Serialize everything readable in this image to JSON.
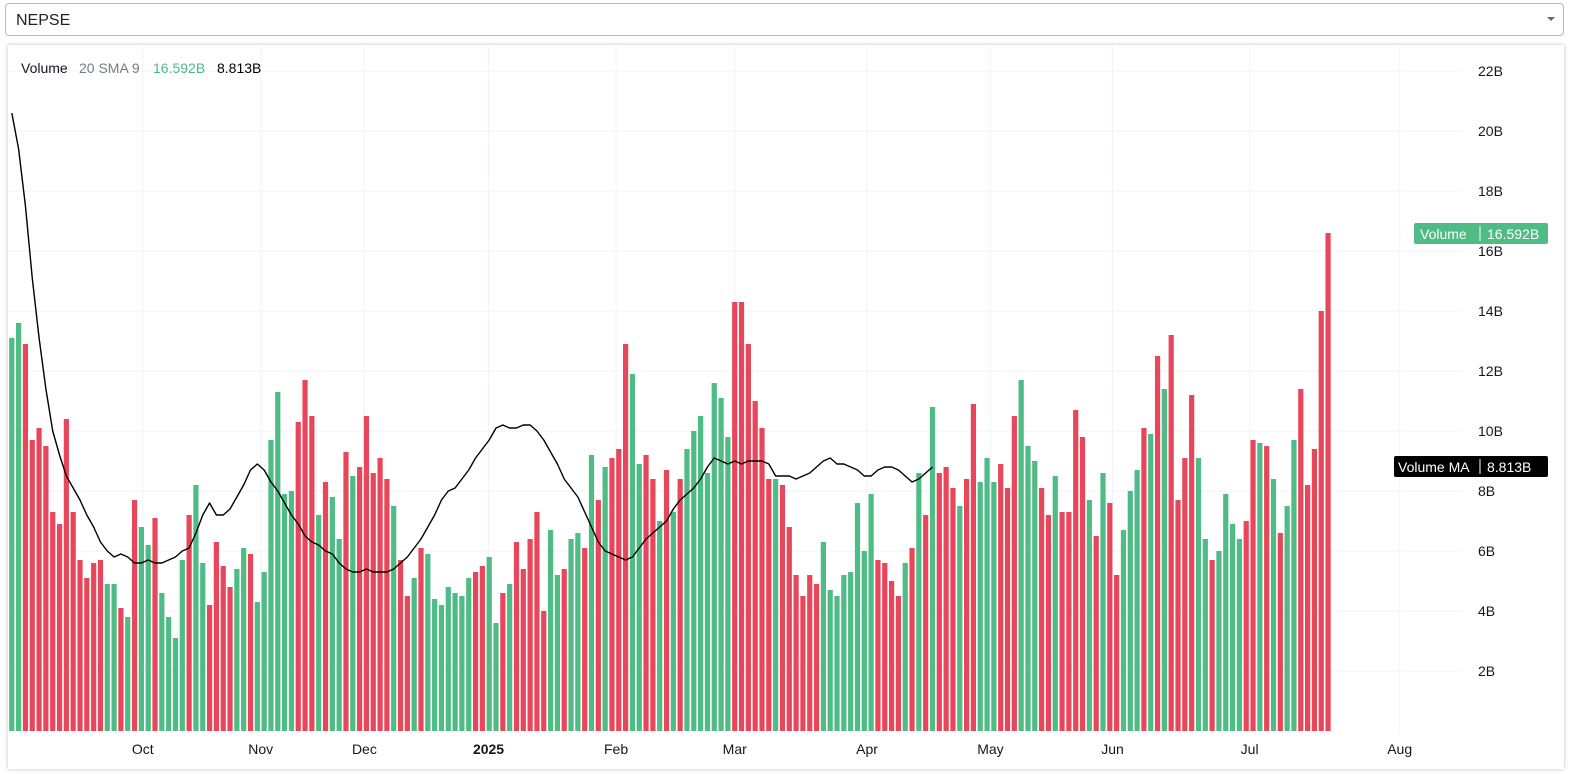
{
  "selector": {
    "value": "NEPSE"
  },
  "legend": {
    "name": "Volume",
    "params": "20 SMA 9",
    "volume_value": "16.592B",
    "ma_value": "8.813B"
  },
  "badges": {
    "volume_label": "Volume",
    "volume_value": "16.592B",
    "ma_label": "Volume MA",
    "ma_value": "8.813B"
  },
  "colors": {
    "up": "#4fbb85",
    "down": "#e8475b",
    "ma_line": "#000000",
    "grid": "#f0f3fa",
    "text": "#131722"
  },
  "chart_data": {
    "type": "bar",
    "title": "",
    "y_unit": "B",
    "ylim": [
      0,
      23.2
    ],
    "y_ticks": [
      2,
      4,
      6,
      8,
      10,
      12,
      14,
      16,
      18,
      20,
      22
    ],
    "y_tick_labels": [
      "2B",
      "4B",
      "6B",
      "8B",
      "10B",
      "12B",
      "14B",
      "16B",
      "18B",
      "20B",
      "22B"
    ],
    "x_labels": [
      {
        "label": "Oct",
        "index": 19.2,
        "bold": false
      },
      {
        "label": "Nov",
        "index": 36.5,
        "bold": false
      },
      {
        "label": "Dec",
        "index": 51.7,
        "bold": false
      },
      {
        "label": "2025",
        "index": 69.9,
        "bold": true
      },
      {
        "label": "Feb",
        "index": 88.6,
        "bold": false
      },
      {
        "label": "Mar",
        "index": 106.0,
        "bold": false
      },
      {
        "label": "Apr",
        "index": 125.4,
        "bold": false
      },
      {
        "label": "May",
        "index": 143.5,
        "bold": false
      },
      {
        "label": "Jun",
        "index": 161.4,
        "bold": false
      },
      {
        "label": "Jul",
        "index": 181.5,
        "bold": false
      },
      {
        "label": "Aug",
        "index": 203.5,
        "bold": false
      }
    ],
    "grid": true,
    "series": [
      {
        "kind": "bar",
        "values": [
          13.1,
          13.6,
          12.9,
          9.7,
          10.1,
          9.5,
          7.3,
          6.9,
          10.4,
          7.3,
          5.7,
          5.1,
          5.6,
          5.7,
          4.9,
          4.9,
          4.1,
          3.8,
          7.7,
          6.8,
          6.2,
          7.1,
          4.6,
          3.8,
          3.1,
          5.7,
          7.2,
          8.2,
          5.6,
          4.2,
          6.3,
          5.5,
          4.8,
          5.4,
          6.1,
          5.9,
          4.3,
          5.3,
          9.7,
          11.3,
          7.9,
          8.0,
          10.3,
          11.7,
          10.5,
          7.2,
          8.3,
          7.8,
          6.4,
          9.3,
          8.5,
          8.8,
          10.5,
          8.6,
          9.1,
          8.4,
          7.5,
          5.7,
          4.5,
          5.1,
          6.1,
          5.9,
          4.4,
          4.2,
          4.8,
          4.6,
          4.5,
          5.1,
          5.3,
          5.5,
          5.8,
          3.6,
          4.6,
          4.9,
          6.3,
          5.4,
          6.4,
          7.3,
          4.0,
          6.7,
          5.2,
          5.4,
          6.4,
          6.6,
          6.1,
          9.2,
          7.7,
          8.8,
          9.1,
          9.4,
          12.9,
          11.9,
          8.9,
          9.2,
          8.4,
          7.0,
          8.7,
          7.3,
          8.4,
          9.4,
          10.0,
          10.5,
          8.6,
          11.6,
          11.1,
          9.8,
          14.3,
          14.3,
          12.9,
          11.0,
          10.1,
          8.4,
          8.4,
          8.2,
          6.8,
          5.2,
          4.5,
          5.2,
          4.9,
          6.3,
          4.7,
          4.5,
          5.2,
          5.3,
          7.6,
          6.0,
          7.9,
          5.7,
          5.6,
          5.0,
          4.5,
          5.6,
          6.1,
          8.6,
          7.2,
          10.8,
          8.6,
          8.8,
          8.1,
          7.5,
          8.4,
          10.9,
          8.3,
          9.1,
          8.3,
          8.9,
          8.1,
          10.5,
          11.7,
          9.5,
          9.0,
          8.1,
          7.2,
          8.5,
          7.3,
          7.3,
          10.7,
          9.8,
          7.7,
          6.5,
          8.6,
          7.6,
          5.2,
          6.7,
          8.0,
          8.7,
          10.1,
          9.9,
          12.5,
          11.4,
          13.2,
          7.7,
          9.1,
          11.2,
          9.1,
          6.4,
          5.7,
          6.0,
          7.9,
          6.9,
          6.4,
          7.0,
          9.7,
          9.6,
          9.5,
          8.4,
          6.6,
          7.5,
          9.7,
          11.4,
          8.2,
          9.4,
          14.0,
          16.6
        ],
        "colors": "ggrrrrrrrrrrrrggrgrggrggggrggrrrrggrggggggrrrgrggrgrrrrrgrrgrgggggggrrggrgrrrrrggrggrgrgrrrggrrgrgrgggggggrrrrrrgrrrrrrggggggggrrrrgrgrgrrrgrrgggrrrgggrrgrrrrgrgrrgggrgrgrrrrggrggggrrgrgrgg"
      },
      {
        "kind": "line",
        "name": "Volume MA",
        "values": [
          20.6,
          19.4,
          17.5,
          15.1,
          13.1,
          11.4,
          10.0,
          9.2,
          8.5,
          8.1,
          7.7,
          7.2,
          6.8,
          6.3,
          6.0,
          5.8,
          5.9,
          5.8,
          5.6,
          5.6,
          5.7,
          5.6,
          5.6,
          5.7,
          5.8,
          6.0,
          6.1,
          6.6,
          7.2,
          7.6,
          7.2,
          7.2,
          7.4,
          7.8,
          8.2,
          8.7,
          8.9,
          8.7,
          8.3,
          8.0,
          7.6,
          7.2,
          6.9,
          6.5,
          6.3,
          6.2,
          6.0,
          5.9,
          5.6,
          5.4,
          5.3,
          5.3,
          5.4,
          5.3,
          5.3,
          5.3,
          5.4,
          5.6,
          5.8,
          6.1,
          6.4,
          6.8,
          7.2,
          7.7,
          8.0,
          8.1,
          8.4,
          8.7,
          9.1,
          9.4,
          9.7,
          10.1,
          10.2,
          10.1,
          10.1,
          10.2,
          10.2,
          10.0,
          9.7,
          9.3,
          8.9,
          8.4,
          8.1,
          7.8,
          7.3,
          6.8,
          6.3,
          6.0,
          5.9,
          5.8,
          5.7,
          5.8,
          6.1,
          6.4,
          6.6,
          6.8,
          7.0,
          7.4,
          7.7,
          7.9,
          8.1,
          8.4,
          8.8,
          9.1,
          9.0,
          8.9,
          9.0,
          8.9,
          9.0,
          9.0,
          9.0,
          8.9,
          8.5,
          8.5,
          8.5,
          8.4,
          8.5,
          8.6,
          8.8,
          9.0,
          9.1,
          8.9,
          8.9,
          8.8,
          8.7,
          8.5,
          8.5,
          8.7,
          8.8,
          8.8,
          8.7,
          8.5,
          8.3,
          8.4,
          8.6,
          8.8
        ]
      }
    ]
  }
}
